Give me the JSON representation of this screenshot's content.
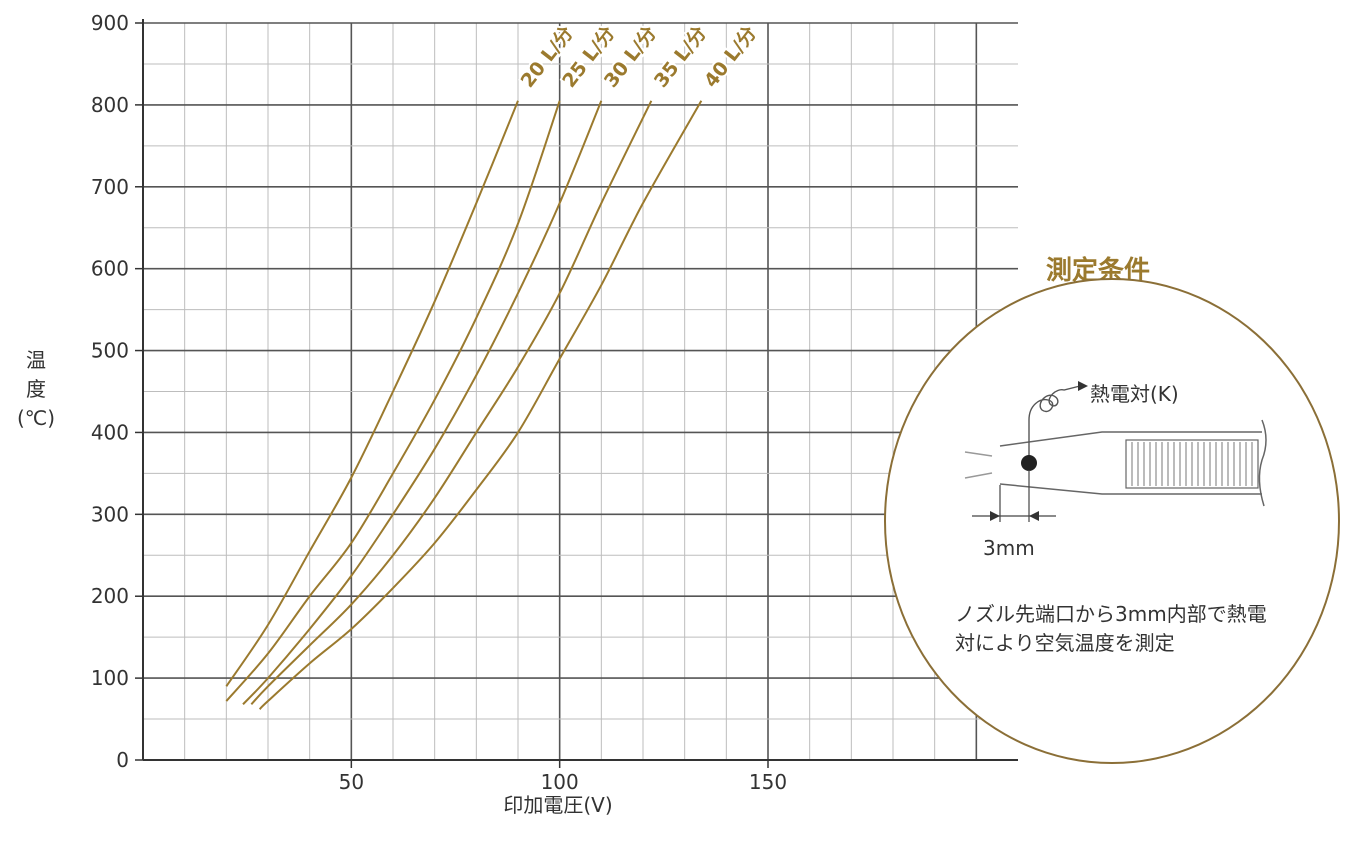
{
  "chart_data": {
    "type": "line",
    "xlabel": "印加電圧(V)",
    "ylabel_chars": [
      "温",
      "度",
      "(℃)"
    ],
    "xlim": [
      0,
      210
    ],
    "ylim": [
      0,
      900
    ],
    "x_ticks": [
      50,
      100,
      150
    ],
    "y_ticks": [
      0,
      100,
      200,
      300,
      400,
      500,
      600,
      700,
      800,
      900
    ],
    "grid": true,
    "series": [
      {
        "name": "20 L/分",
        "points": [
          [
            20,
            90
          ],
          [
            30,
            165
          ],
          [
            40,
            255
          ],
          [
            50,
            345
          ],
          [
            60,
            450
          ],
          [
            70,
            560
          ],
          [
            80,
            680
          ],
          [
            90,
            805
          ]
        ]
      },
      {
        "name": "25 L/分",
        "points": [
          [
            20,
            72
          ],
          [
            30,
            130
          ],
          [
            40,
            200
          ],
          [
            50,
            265
          ],
          [
            60,
            350
          ],
          [
            70,
            440
          ],
          [
            80,
            540
          ],
          [
            90,
            655
          ],
          [
            100,
            805
          ]
        ]
      },
      {
        "name": "30 L/分",
        "points": [
          [
            24,
            68
          ],
          [
            30,
            100
          ],
          [
            40,
            160
          ],
          [
            50,
            225
          ],
          [
            60,
            300
          ],
          [
            70,
            380
          ],
          [
            80,
            470
          ],
          [
            90,
            570
          ],
          [
            100,
            680
          ],
          [
            110,
            805
          ]
        ]
      },
      {
        "name": "35 L/分",
        "points": [
          [
            26,
            68
          ],
          [
            30,
            90
          ],
          [
            40,
            140
          ],
          [
            50,
            190
          ],
          [
            60,
            250
          ],
          [
            70,
            320
          ],
          [
            80,
            400
          ],
          [
            90,
            480
          ],
          [
            100,
            570
          ],
          [
            110,
            680
          ],
          [
            122,
            805
          ]
        ]
      },
      {
        "name": "40 L/分",
        "points": [
          [
            28,
            62
          ],
          [
            30,
            72
          ],
          [
            40,
            118
          ],
          [
            50,
            160
          ],
          [
            60,
            210
          ],
          [
            70,
            265
          ],
          [
            80,
            330
          ],
          [
            90,
            400
          ],
          [
            100,
            490
          ],
          [
            110,
            580
          ],
          [
            120,
            680
          ],
          [
            134,
            805
          ]
        ]
      }
    ],
    "colors": {
      "curve": "#9b7a2e",
      "major_grid": "#555555",
      "minor_grid": "#bdbdbd"
    }
  },
  "conditions": {
    "title": "測定条件",
    "thermocouple_label": "熱電対(K)",
    "distance_label": "3mm",
    "note": "ノズル先端口から3mm内部で熱電対により空気温度を測定"
  }
}
